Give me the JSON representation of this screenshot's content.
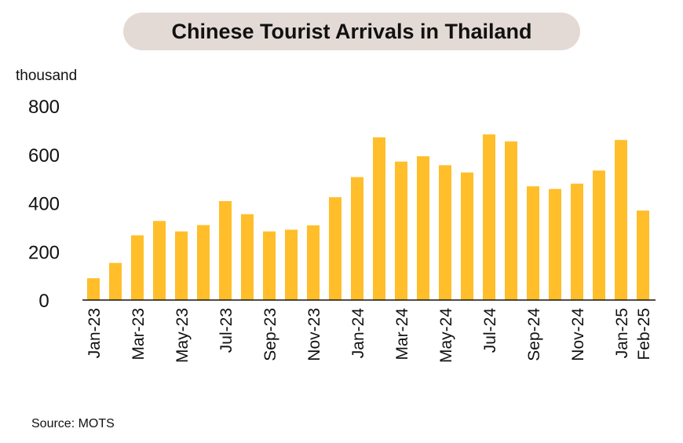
{
  "title": "Chinese Tourist Arrivals in Thailand",
  "unit_label": "thousand",
  "source": "Source: MOTS",
  "colors": {
    "bar": "#FFBE2A",
    "title_bg": "#E3DAD6",
    "axis": "#111111"
  },
  "chart_data": {
    "type": "bar",
    "title": "Chinese Tourist Arrivals in Thailand",
    "ylabel": "thousand",
    "ylim": [
      0,
      800
    ],
    "yticks": [
      0,
      200,
      400,
      600,
      800
    ],
    "grid": false,
    "categories": [
      "Jan-23",
      "Feb-23",
      "Mar-23",
      "Apr-23",
      "May-23",
      "Jun-23",
      "Jul-23",
      "Aug-23",
      "Sep-23",
      "Oct-23",
      "Nov-23",
      "Dec-23",
      "Jan-24",
      "Feb-24",
      "Mar-24",
      "Apr-24",
      "May-24",
      "Jun-24",
      "Jul-24",
      "Aug-24",
      "Sep-24",
      "Oct-24",
      "Nov-24",
      "Dec-24",
      "Jan-25",
      "Feb-25"
    ],
    "tick_labels": [
      "Jan-23",
      "Mar-23",
      "May-23",
      "Jul-23",
      "Sep-23",
      "Nov-23",
      "Jan-24",
      "Mar-24",
      "May-24",
      "Jul-24",
      "Sep-24",
      "Nov-24",
      "Jan-25",
      "Feb-25"
    ],
    "values": [
      90,
      153,
      267,
      326,
      283,
      309,
      408,
      354,
      283,
      290,
      308,
      424,
      507,
      671,
      571,
      593,
      556,
      526,
      683,
      654,
      469,
      458,
      480,
      534,
      660,
      369
    ]
  }
}
